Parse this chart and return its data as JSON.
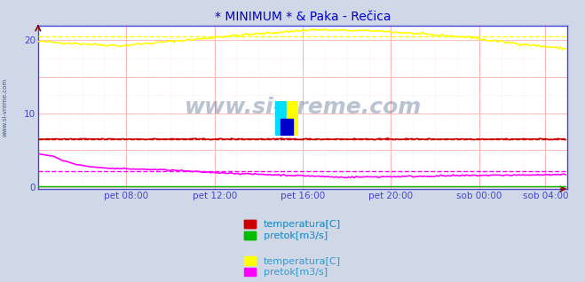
{
  "title": "* MINIMUM * & Paka - Rečica",
  "title_color": "#0000cc",
  "bg_color": "#d0d8e8",
  "plot_bg_color": "#ffffff",
  "grid_major_color": "#ffb0b0",
  "grid_minor_color": "#ffd8d8",
  "spine_color": "#4444cc",
  "xlim": [
    0,
    288
  ],
  "ylim": [
    -0.3,
    22
  ],
  "yticks": [
    0,
    10,
    20
  ],
  "xtick_labels": [
    "pet 08:00",
    "pet 12:00",
    "pet 16:00",
    "pet 20:00",
    "sob 00:00",
    "sob 04:00"
  ],
  "xtick_positions": [
    48,
    96,
    144,
    192,
    240,
    276
  ],
  "watermark": "www.si-vreme.com",
  "watermark_color": "#1a3a6a",
  "watermark_alpha": 0.3,
  "sidebar_text": "www.si-vreme.com",
  "sidebar_color": "#1a3a6a",
  "legend_items": [
    {
      "label": "temperatura[C]",
      "color": "#cc0000"
    },
    {
      "label": "pretok[m3/s]",
      "color": "#00bb00"
    },
    {
      "label": "temperatura[C]",
      "color": "#ffff00"
    },
    {
      "label": "pretok[m3/s]",
      "color": "#ff00ff"
    }
  ],
  "red_line_y": 6.5,
  "magenta_dashed_y": 2.1,
  "yellow_dashed_y": 20.5,
  "arrow_color": "#880000",
  "tick_label_color": "#4444cc",
  "ytick_label_color": "#4444cc"
}
